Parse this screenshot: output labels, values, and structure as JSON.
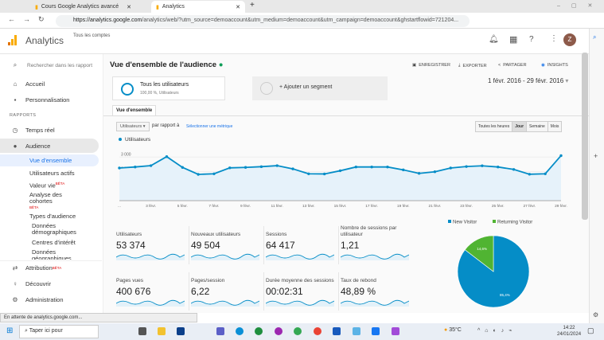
{
  "browser": {
    "tabs": [
      {
        "label": "Cours Google Analytics avancé"
      },
      {
        "label": "Analytics"
      }
    ],
    "url_domain": "https://analytics.google.com",
    "url_rest": "/analytics/web/?utm_source=demoaccount&utm_medium=demoaccount&utm_campaign=demoaccount&ghstartflowid=721204...",
    "status": "En attente de analytics.google.com..."
  },
  "header": {
    "app": "Analytics",
    "account_label": "Tous les comptes",
    "avatar": "Z"
  },
  "sidebar": {
    "search_placeholder": "Rechercher dans les rapport",
    "accueil": "Accueil",
    "personnalisation": "Personnalisation",
    "section": "RAPPORTS",
    "temps_reel": "Temps réel",
    "audience": "Audience",
    "sub": [
      "Vue d'ensemble",
      "Utilisateurs actifs",
      "Valeur vie",
      "Analyse des cohortes",
      "Types d'audience",
      "Données démographiques",
      "Centres d'intérêt",
      "Données géographiques"
    ],
    "beta": "BÊTA",
    "attribution": "Attribution",
    "decouvrir": "Découvrir",
    "administration": "Administration"
  },
  "page": {
    "title": "Vue d'ensemble de l'audience",
    "actions": {
      "save": "ENREGISTRER",
      "export": "EXPORTER",
      "share": "PARTAGER",
      "insights": "INSIGHTS"
    },
    "segment": {
      "name": "Tous les utilisateurs",
      "detail": "100,00 %, Utilisateurs",
      "add": "+ Ajouter un segment"
    },
    "date_range": "1 févr. 2016 - 29 févr. 2016",
    "tab": "Vue d'ensemble",
    "metric_select": "Utilisateurs",
    "compare_label": "par rapport à",
    "compare_link": "Sélectionner une métrique",
    "granularity": [
      "Toutes les heures",
      "Jour",
      "Semaine",
      "Mois"
    ],
    "granularity_active": "Jour"
  },
  "metrics": [
    {
      "label": "Utilisateurs",
      "value": "53 374"
    },
    {
      "label": "Nouveaux utilisateurs",
      "value": "49 504"
    },
    {
      "label": "Sessions",
      "value": "64 417"
    },
    {
      "label": "Nombre de sessions par utilisateur",
      "value": "1,21"
    },
    {
      "label": "Pages vues",
      "value": "400 676"
    },
    {
      "label": "Pages/session",
      "value": "6,22"
    },
    {
      "label": "Durée moyenne des sessions",
      "value": "00:02:31"
    },
    {
      "label": "Taux de rebond",
      "value": "48,89 %"
    }
  ],
  "chart_data": [
    {
      "type": "area",
      "legend": "Utilisateurs",
      "ylim": [
        0,
        3400
      ],
      "yticks": [
        "3 000",
        "2 000",
        "1 000"
      ],
      "ytick_values": [
        3000,
        2000,
        1000
      ],
      "x": [
        1,
        2,
        3,
        4,
        5,
        6,
        7,
        8,
        9,
        10,
        11,
        12,
        13,
        14,
        15,
        16,
        17,
        18,
        19,
        20,
        21,
        22,
        23,
        24,
        25,
        26,
        27,
        28,
        29
      ],
      "xtick_labels": [
        "...",
        "3 févr.",
        "5 févr.",
        "7 févr.",
        "9 févr.",
        "11 févr.",
        "13 févr.",
        "15 févr.",
        "17 févr.",
        "19 févr.",
        "21 févr.",
        "23 févr.",
        "25 févr.",
        "27 févr.",
        "29 févr."
      ],
      "values": [
        2250,
        2320,
        2410,
        3030,
        2290,
        1810,
        1850,
        2260,
        2290,
        2340,
        2410,
        2190,
        1850,
        1840,
        2060,
        2320,
        2320,
        2320,
        2120,
        1880,
        1990,
        2250,
        2350,
        2400,
        2320,
        2150,
        1820,
        1850,
        3100
      ],
      "color": "#058dc7"
    },
    {
      "type": "pie",
      "legend": [
        "New Visitor",
        "Returning Visitor"
      ],
      "values": [
        85.4,
        14.6
      ],
      "labels": [
        "85,4%",
        "14,6%"
      ],
      "colors": [
        "#058dc7",
        "#50b432"
      ]
    }
  ],
  "taskbar": {
    "search": "Taper ici pour",
    "weather": "35°C",
    "time": "14:22",
    "date": "24/01/2024"
  }
}
